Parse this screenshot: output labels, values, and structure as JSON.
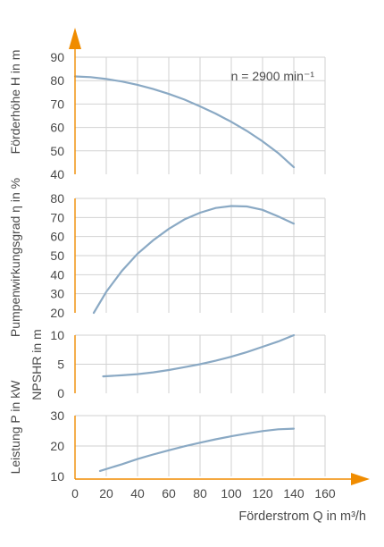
{
  "chart_data": {
    "type": "line",
    "xlabel": "Förderstrom Q in m³/h",
    "x_ticks": [
      0,
      20,
      40,
      60,
      80,
      100,
      120,
      140,
      160
    ],
    "xlim": [
      0,
      160
    ],
    "grid": true,
    "accent_color": "#f08c00",
    "curve_color": "#8aa9c4",
    "panels": [
      {
        "id": "head",
        "ylabel": "Förderhöhe H in m",
        "ylim": [
          40,
          90
        ],
        "y_ticks": [
          40,
          50,
          60,
          70,
          80,
          90
        ],
        "annotation": "n = 2900 min⁻¹",
        "series": {
          "x": [
            0,
            10,
            20,
            30,
            40,
            50,
            60,
            70,
            80,
            90,
            100,
            110,
            120,
            130,
            140
          ],
          "y": [
            81.8,
            81.5,
            80.7,
            79.6,
            78.2,
            76.4,
            74.3,
            71.9,
            69.0,
            65.9,
            62.4,
            58.5,
            54.1,
            49.1,
            43.0
          ]
        }
      },
      {
        "id": "efficiency",
        "ylabel": "Pumpenwirkungsgrad η in %",
        "ylim": [
          20,
          80
        ],
        "y_ticks": [
          20,
          30,
          40,
          50,
          60,
          70,
          80
        ],
        "series": {
          "x": [
            12,
            20,
            30,
            40,
            50,
            60,
            70,
            80,
            90,
            100,
            110,
            120,
            130,
            140
          ],
          "y": [
            20.0,
            31.0,
            42.0,
            51.0,
            58.0,
            64.0,
            69.0,
            72.5,
            75.0,
            76.0,
            75.8,
            74.0,
            70.6,
            66.8
          ]
        }
      },
      {
        "id": "npshr",
        "ylabel": "NPSHR in m",
        "ylim": [
          0,
          10
        ],
        "y_ticks": [
          0,
          5,
          10
        ],
        "series": {
          "x": [
            18,
            30,
            40,
            50,
            60,
            70,
            80,
            90,
            100,
            110,
            120,
            130,
            140
          ],
          "y": [
            2.9,
            3.1,
            3.3,
            3.6,
            4.0,
            4.5,
            5.0,
            5.6,
            6.3,
            7.1,
            8.0,
            8.9,
            10.0
          ]
        }
      },
      {
        "id": "power",
        "ylabel": "Leistung P in kW",
        "ylim": [
          10,
          30
        ],
        "y_ticks": [
          10,
          20,
          30
        ],
        "series": {
          "x": [
            16,
            30,
            40,
            50,
            60,
            70,
            80,
            90,
            100,
            110,
            120,
            130,
            140
          ],
          "y": [
            11.8,
            14.0,
            15.7,
            17.2,
            18.6,
            19.9,
            21.1,
            22.2,
            23.2,
            24.1,
            24.9,
            25.5,
            25.7
          ]
        }
      }
    ]
  }
}
